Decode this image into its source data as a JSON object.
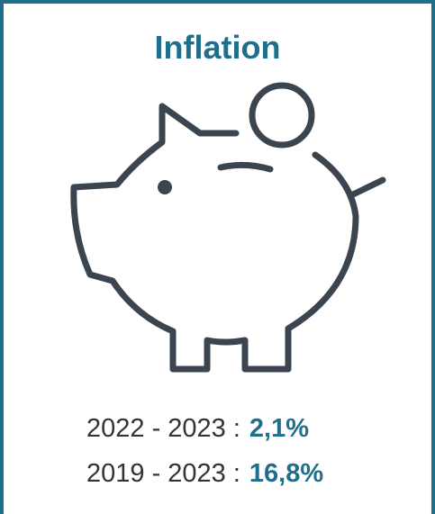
{
  "title": "Inflation",
  "rows": [
    {
      "period": "2022 - 2023 :",
      "value": "2,1%"
    },
    {
      "period": "2019 - 2023 :",
      "value": "16,8%"
    }
  ]
}
